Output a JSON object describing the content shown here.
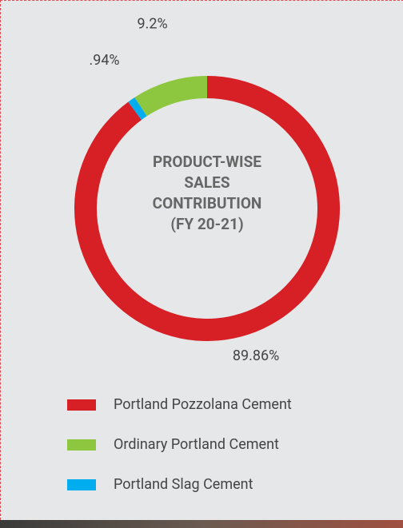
{
  "chart_data": {
    "type": "pie",
    "donut": true,
    "title": "PRODUCT-WISE SALES CONTRIBUTION (FY 20-21)",
    "categories": [
      "Portland Pozzolana Cement",
      "Ordinary Portland Cement",
      "Portland Slag Cement"
    ],
    "values": [
      89.86,
      9.2,
      0.94
    ],
    "value_labels": [
      "89.86%",
      "9.2%",
      ".94%"
    ],
    "colors": [
      "#d71f26",
      "#8dc63f",
      "#00aeef"
    ],
    "legend": "bottom"
  }
}
